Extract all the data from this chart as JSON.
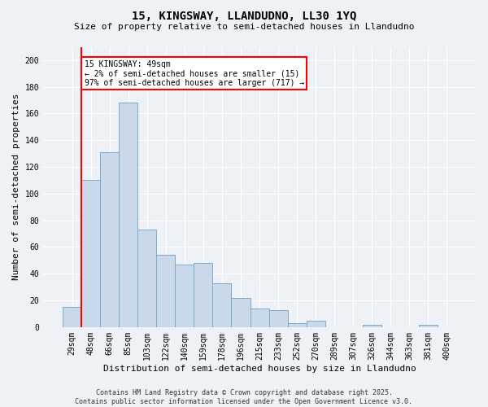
{
  "title1": "15, KINGSWAY, LLANDUDNO, LL30 1YQ",
  "title2": "Size of property relative to semi-detached houses in Llandudno",
  "xlabel": "Distribution of semi-detached houses by size in Llandudno",
  "ylabel": "Number of semi-detached properties",
  "bar_labels": [
    "29sqm",
    "48sqm",
    "66sqm",
    "85sqm",
    "103sqm",
    "122sqm",
    "140sqm",
    "159sqm",
    "178sqm",
    "196sqm",
    "215sqm",
    "233sqm",
    "252sqm",
    "270sqm",
    "289sqm",
    "307sqm",
    "326sqm",
    "344sqm",
    "363sqm",
    "381sqm",
    "400sqm"
  ],
  "bar_values": [
    15,
    110,
    131,
    168,
    73,
    54,
    47,
    48,
    33,
    22,
    14,
    13,
    3,
    5,
    0,
    0,
    2,
    0,
    0,
    2,
    0
  ],
  "bar_color": "#c9d9ea",
  "bar_edge_color": "#7aaac8",
  "vline_color": "red",
  "vline_index": 1,
  "annotation_text": "15 KINGSWAY: 49sqm\n← 2% of semi-detached houses are smaller (15)\n97% of semi-detached houses are larger (717) →",
  "annotation_box_color": "white",
  "annotation_box_edge_color": "red",
  "ylim": [
    0,
    210
  ],
  "yticks": [
    0,
    20,
    40,
    60,
    80,
    100,
    120,
    140,
    160,
    180,
    200
  ],
  "footer": "Contains HM Land Registry data © Crown copyright and database right 2025.\nContains public sector information licensed under the Open Government Licence v3.0.",
  "bg_color": "#eef2f7",
  "plot_bg_color": "#eef2f7",
  "grid_color": "#ffffff",
  "title1_fontsize": 10,
  "title2_fontsize": 8,
  "ylabel_fontsize": 8,
  "xlabel_fontsize": 8,
  "tick_fontsize": 7,
  "footer_fontsize": 6,
  "annotation_fontsize": 7
}
